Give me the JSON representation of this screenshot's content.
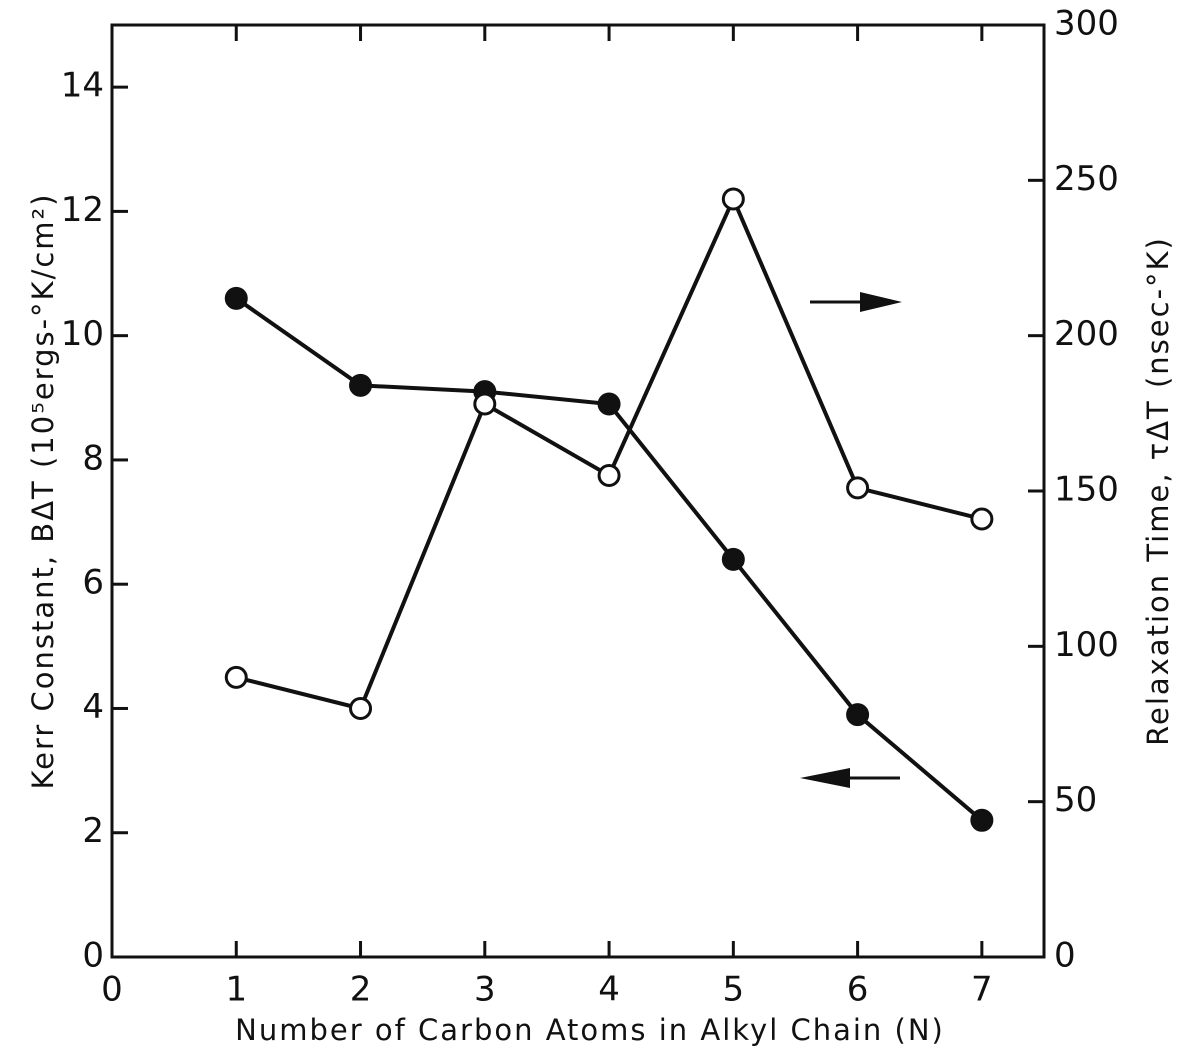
{
  "chart_data": {
    "type": "line",
    "xlabel": "Number of Carbon Atoms in Alkyl Chain (N)",
    "ylabel": "Kerr Constant, BΔT (10⁵ergs-°K/cm²)",
    "y2label": "Relaxation Time, τΔT (nsec-°K)",
    "x": [
      1,
      2,
      3,
      4,
      5,
      6,
      7
    ],
    "series": [
      {
        "color": "#111111",
        "marker": "filled",
        "values": [
          10.6,
          9.2,
          9.1,
          8.9,
          6.4,
          3.9,
          2.2
        ]
      },
      {
        "color": "#111111",
        "marker": "open",
        "axis": "y2",
        "values": [
          90,
          80,
          178,
          155,
          244,
          151,
          141
        ]
      }
    ],
    "xlim": [
      0,
      7.5
    ],
    "xticks": [
      0,
      1,
      2,
      3,
      4,
      5,
      6,
      7
    ],
    "ylim": [
      0,
      15
    ],
    "yticks": [
      0,
      2,
      4,
      6,
      8,
      10,
      12,
      14
    ],
    "y2lim": [
      0,
      300
    ],
    "y2ticks": [
      0,
      50,
      100,
      150,
      200,
      250,
      300
    ]
  }
}
